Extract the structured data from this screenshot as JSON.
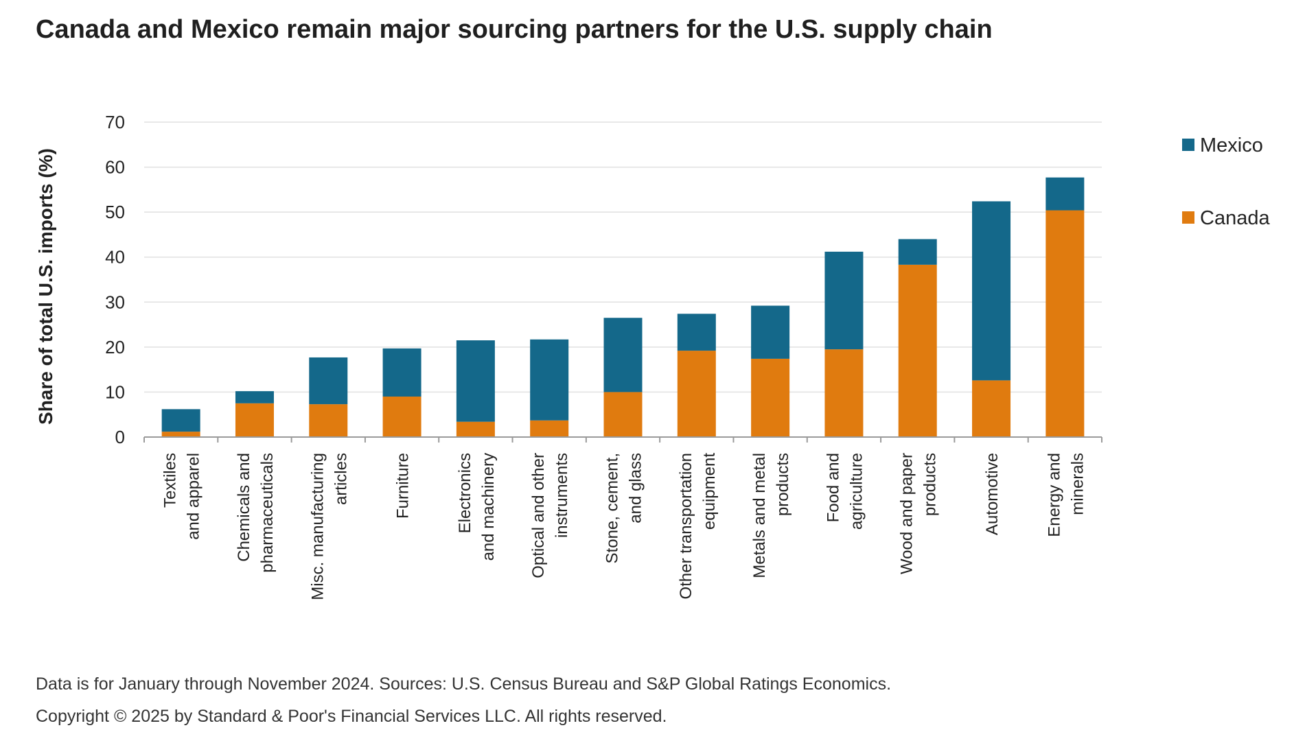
{
  "chart_data": {
    "type": "bar",
    "stacked": true,
    "title": "Canada and Mexico remain major sourcing partners for the U.S. supply chain",
    "ylabel": "Share of total U.S. imports (%)",
    "xlabel": "",
    "ylim": [
      0,
      70
    ],
    "yticks": [
      0,
      10,
      20,
      30,
      40,
      50,
      60,
      70
    ],
    "grid": true,
    "legend": "right",
    "categories": [
      [
        "Textiles",
        "and apparel"
      ],
      [
        "Chemicals and",
        "pharmaceuticals"
      ],
      [
        "Misc. manufacturing",
        "articles"
      ],
      [
        "Furniture"
      ],
      [
        "Electronics",
        "and machinery"
      ],
      [
        "Optical and other",
        "instruments"
      ],
      [
        "Stone, cement,",
        "and glass"
      ],
      [
        "Other transportation",
        "equipment"
      ],
      [
        "Metals and metal",
        "products"
      ],
      [
        "Food and",
        "agriculture"
      ],
      [
        "Wood and paper",
        "products"
      ],
      [
        "Automotive"
      ],
      [
        "Energy and",
        "minerals"
      ]
    ],
    "series": [
      {
        "name": "Canada",
        "color": "#e07b0f",
        "values": [
          1.2,
          7.5,
          7.3,
          9.0,
          3.4,
          3.7,
          10.0,
          19.2,
          17.4,
          19.5,
          38.3,
          12.6,
          50.4
        ]
      },
      {
        "name": "Mexico",
        "color": "#14688a",
        "values": [
          5.0,
          2.7,
          10.4,
          10.7,
          18.1,
          18.0,
          16.5,
          8.2,
          11.8,
          21.7,
          5.7,
          39.8,
          7.3
        ]
      }
    ],
    "legend_order": [
      "Mexico",
      "Canada"
    ]
  },
  "notes": {
    "source": "Data is for January through November 2024. Sources: U.S. Census Bureau and S&P Global Ratings Economics.",
    "copyright": "Copyright © 2025 by Standard & Poor's Financial Services LLC. All rights reserved."
  },
  "colors": {
    "gridline": "#e0e0e0",
    "axis": "#9a9a9a"
  }
}
